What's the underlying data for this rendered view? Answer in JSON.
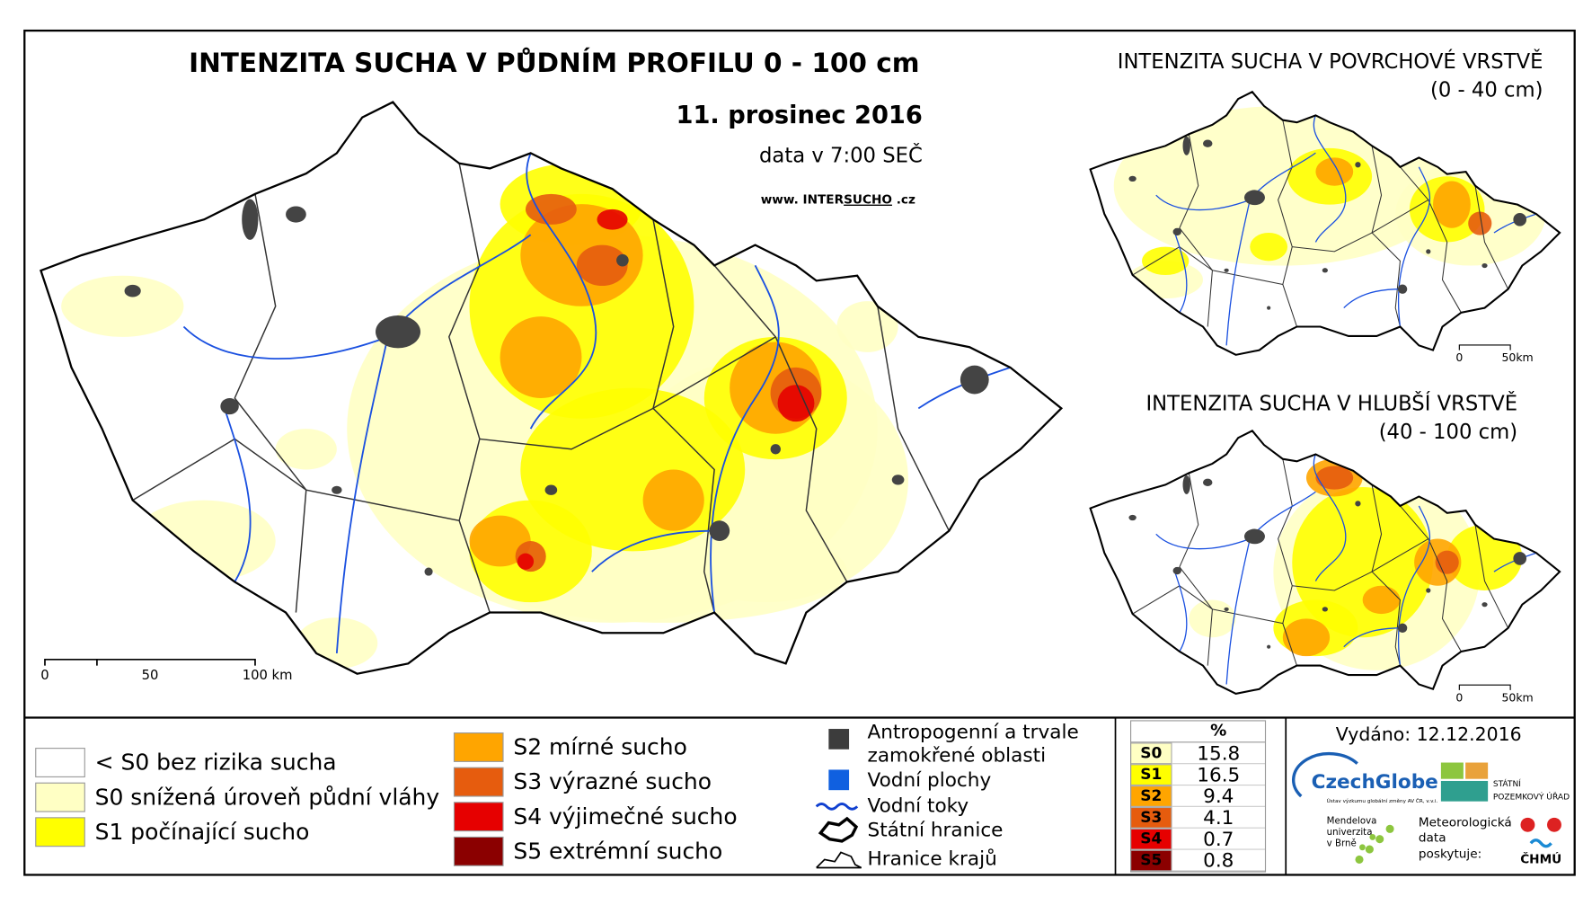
{
  "title": "INTENZITA SUCHA V PŮDNÍM PROFILU 0 - 100 cm",
  "date": "11. prosinec 2016",
  "data_time": "data v 7:00 SEČ",
  "website": {
    "prefix": "www. INTER",
    "highlight": "SUCHO",
    "suffix": " .cz"
  },
  "main_scale": [
    "0",
    "50",
    "100 km"
  ],
  "inset_top": {
    "title": "INTENZITA SUCHA V POVRCHOVÉ VRSTVĚ",
    "subtitle": "(0 - 40 cm)",
    "scale": [
      "0",
      "50km"
    ]
  },
  "inset_bottom": {
    "title": "INTENZITA SUCHA V HLUBŠÍ VRSTVĚ",
    "subtitle": "(40 - 100 cm)",
    "scale": [
      "0",
      "50km"
    ]
  },
  "legend_drought": [
    {
      "label": "< S0 bez rizika sucha",
      "color": "#ffffff"
    },
    {
      "label": "S0 snížená úroveň půdní vláhy",
      "color": "#ffffc4"
    },
    {
      "label": "S1 počínající sucho",
      "color": "#ffff00"
    },
    {
      "label": "S2 mírné sucho",
      "color": "#ffa500"
    },
    {
      "label": "S3 výrazné sucho",
      "color": "#e65c0e"
    },
    {
      "label": "S4 výjimečné sucho",
      "color": "#e60000"
    },
    {
      "label": "S5 extrémní sucho",
      "color": "#8b0000"
    }
  ],
  "legend_other": [
    "Antropogenní a trvale",
    "zamokřené oblasti",
    "Vodní plochy",
    "Vodní toky",
    "Státní hranice",
    "Hranice krajů"
  ],
  "table": {
    "header": "%",
    "rows": [
      [
        "S0",
        15.8
      ],
      [
        "S1",
        16.5
      ],
      [
        "S2",
        9.4
      ],
      [
        "S3",
        4.1
      ],
      [
        "S4",
        0.7
      ],
      [
        "S5",
        0.8
      ]
    ]
  },
  "issued": "Vydáno: 12.12.2016",
  "logos": {
    "czechglobe": "CzechGlobe",
    "czechglobe_sub": "Ústav výzkumu globální změny AV ČR, v.v.i.",
    "spu": [
      "STÁTNÍ",
      "POZEMKOVÝ ÚŘAD"
    ],
    "mendel": [
      "Mendelova",
      "univerzita",
      "v Brně"
    ],
    "meteo": [
      "Meteorologická",
      "data",
      "poskytuje:"
    ],
    "chmu": "ČHMÚ"
  }
}
